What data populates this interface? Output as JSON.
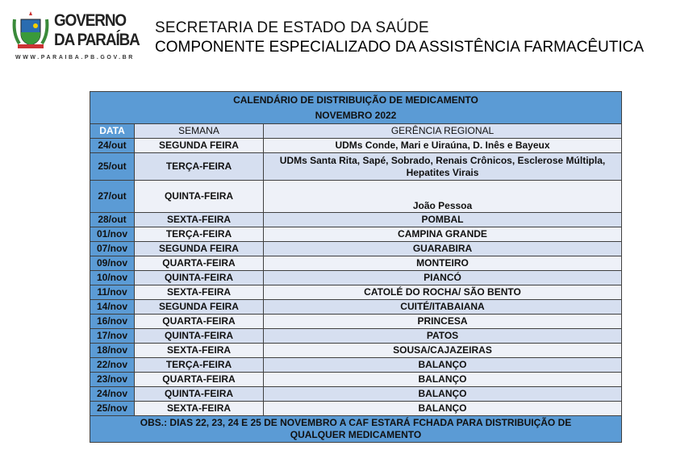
{
  "header": {
    "logo_text_1": "GOVERNO",
    "logo_text_2": "DA PARAÍBA",
    "logo_url": "WWW.PARAIBA.PB.GOV.BR",
    "line1": "SECRETARIA DE ESTADO DA SAÚDE",
    "line2": "COMPONENTE ESPECIALIZADO DA ASSISTÊNCIA FARMACÊUTICA"
  },
  "table": {
    "title": "CALENDÁRIO DE DISTRIBUIÇÃO DE MEDICAMENTO",
    "subtitle": "NOVEMBRO 2022",
    "columns": [
      "DATA",
      "SEMANA",
      "GERÊNCIA REGIONAL"
    ],
    "rows": [
      [
        "24/out",
        "SEGUNDA FEIRA",
        "UDMs Conde, Mari e Uiraúna, D. Inês e Bayeux"
      ],
      [
        "25/out",
        "TERÇA-FEIRA",
        "UDMs Santa Rita, Sapé, Sobrado, Renais Crônicos, Esclerose Múltipla, Hepatites Virais"
      ],
      [
        "27/out",
        "QUINTA-FEIRA",
        "João Pessoa"
      ],
      [
        "28/out",
        "SEXTA-FEIRA",
        "POMBAL"
      ],
      [
        "01/nov",
        "TERÇA-FEIRA",
        "CAMPINA GRANDE"
      ],
      [
        "07/nov",
        "SEGUNDA FEIRA",
        "GUARABIRA"
      ],
      [
        "09/nov",
        "QUARTA-FEIRA",
        "MONTEIRO"
      ],
      [
        "10/nov",
        "QUINTA-FEIRA",
        "PIANCÓ"
      ],
      [
        "11/nov",
        "SEXTA-FEIRA",
        "CATOLÉ DO ROCHA/ SÃO BENTO"
      ],
      [
        "14/nov",
        "SEGUNDA FEIRA",
        "CUITÉ/ITABAIANA"
      ],
      [
        "16/nov",
        "QUARTA-FEIRA",
        "PRINCESA"
      ],
      [
        "17/nov",
        "QUINTA-FEIRA",
        "PATOS"
      ],
      [
        "18/nov",
        "SEXTA-FEIRA",
        "SOUSA/CAJAZEIRAS"
      ],
      [
        "22/nov",
        "TERÇA-FEIRA",
        "BALANÇO"
      ],
      [
        "23/nov",
        "QUARTA-FEIRA",
        "BALANÇO"
      ],
      [
        "24/nov",
        "QUINTA-FEIRA",
        "BALANÇO"
      ],
      [
        "25/nov",
        "SEXTA-FEIRA",
        "BALANÇO"
      ]
    ],
    "note": "OBS.: DIAS 22, 23, 24 E 25 DE NOVEMBRO A CAF ESTARÁ FCHADA PARA DISTRIBUIÇÃO DE QUALQUER MEDICAMENTO"
  },
  "colors": {
    "header_blue": "#5b9bd5",
    "row_light": "#eef1f8",
    "row_dark": "#d6dff0"
  }
}
